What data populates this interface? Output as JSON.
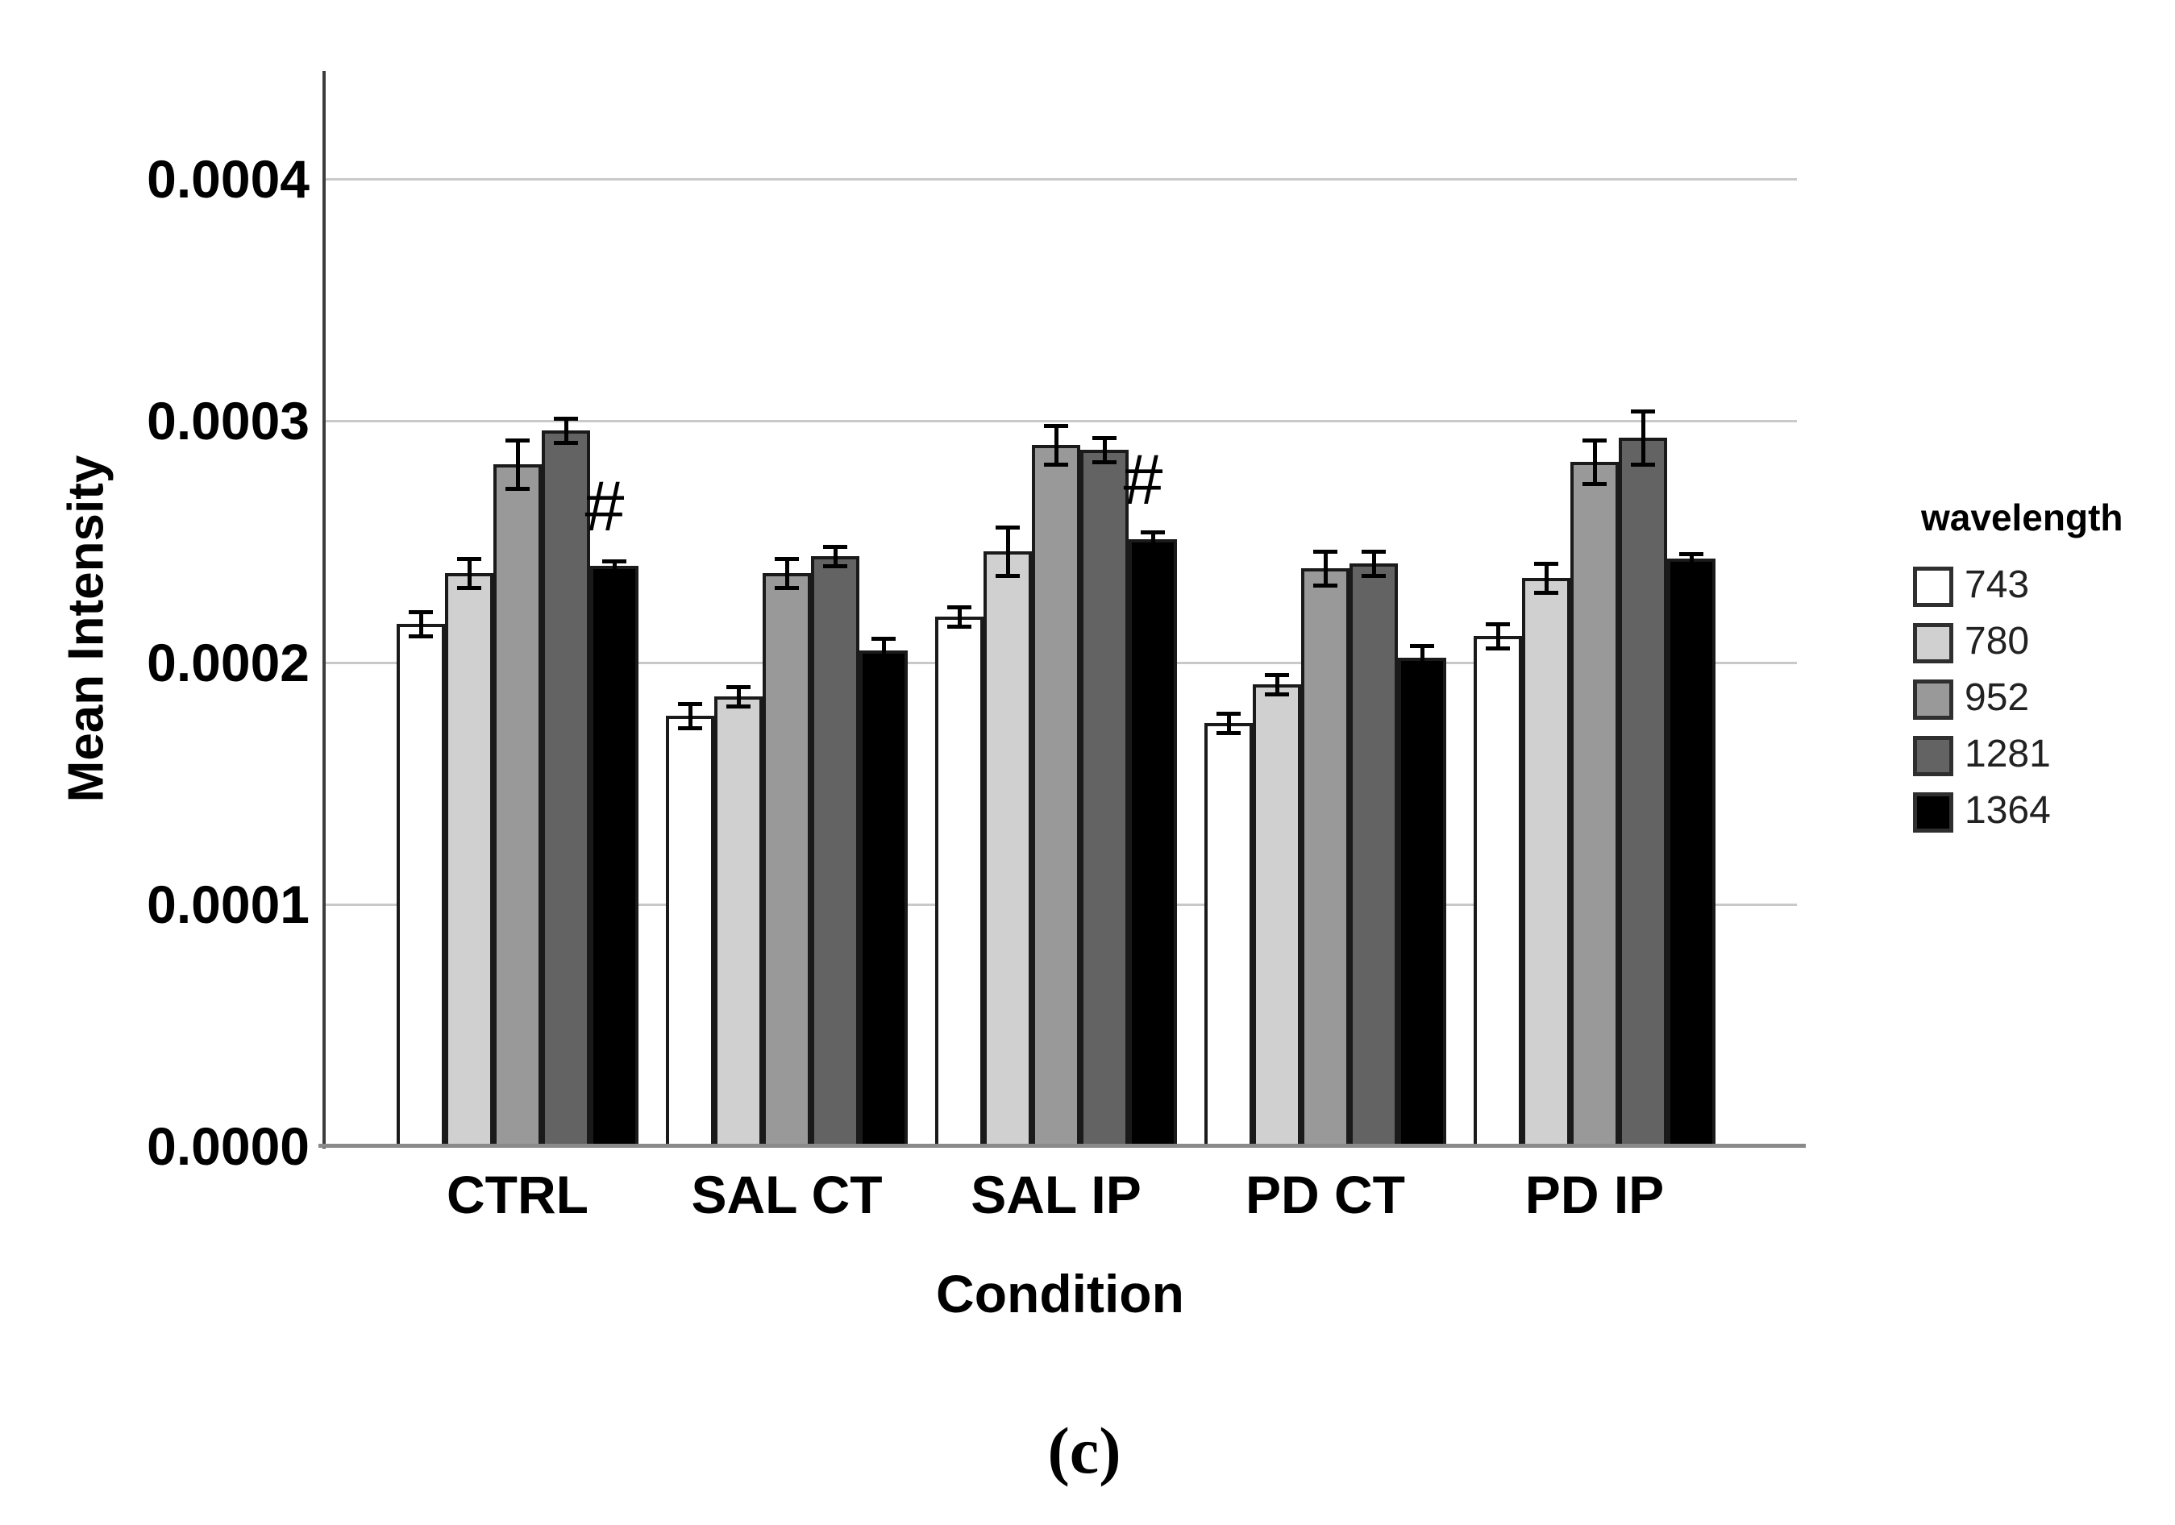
{
  "figure": {
    "caption": "(c)",
    "background_color": "#ffffff",
    "annotation_symbol": "#"
  },
  "chart_data": {
    "type": "bar",
    "title": "",
    "xlabel": "Condition",
    "ylabel": "Mean Intensity",
    "categories": [
      "CTRL",
      "SAL CT",
      "SAL IP",
      "PD CT",
      "PD IP"
    ],
    "series": [
      {
        "name": "743",
        "color": "#ffffff",
        "values": [
          0.000216,
          0.000178,
          0.000219,
          0.000175,
          0.000211
        ],
        "errors": [
          5e-06,
          5e-06,
          4e-06,
          4e-06,
          5e-06
        ]
      },
      {
        "name": "780",
        "color": "#d0d0d0",
        "values": [
          0.000237,
          0.000186,
          0.000246,
          0.000191,
          0.000235
        ],
        "errors": [
          6e-06,
          4e-06,
          1e-05,
          4e-06,
          6e-06
        ]
      },
      {
        "name": "952",
        "color": "#999999",
        "values": [
          0.000282,
          0.000237,
          0.00029,
          0.000239,
          0.000283
        ],
        "errors": [
          1e-05,
          6e-06,
          8e-06,
          7e-06,
          9e-06
        ]
      },
      {
        "name": "1281",
        "color": "#636363",
        "values": [
          0.000296,
          0.000244,
          0.000288,
          0.000241,
          0.000293
        ],
        "errors": [
          5e-06,
          4e-06,
          5e-06,
          5e-06,
          1.1e-05
        ]
      },
      {
        "name": "1364",
        "color": "#000000",
        "values": [
          0.00024,
          0.000205,
          0.000251,
          0.000202,
          0.000243
        ],
        "errors": [
          2e-06,
          5e-06,
          3e-06,
          5e-06,
          2e-06
        ]
      }
    ],
    "ylim": [
      0,
      0.000444
    ],
    "yticks": [
      "0.0000",
      "0.0001",
      "0.0002",
      "0.0003",
      "0.0004"
    ],
    "grid": "horizontal",
    "legend": {
      "title": "wavelength",
      "position": "right",
      "entries": [
        "743",
        "780",
        "952",
        "1281",
        "1364"
      ]
    },
    "annotations": [
      {
        "text": "#",
        "category": "CTRL",
        "series": "1364"
      },
      {
        "text": "#",
        "category": "SAL IP",
        "series": "1364"
      }
    ]
  }
}
